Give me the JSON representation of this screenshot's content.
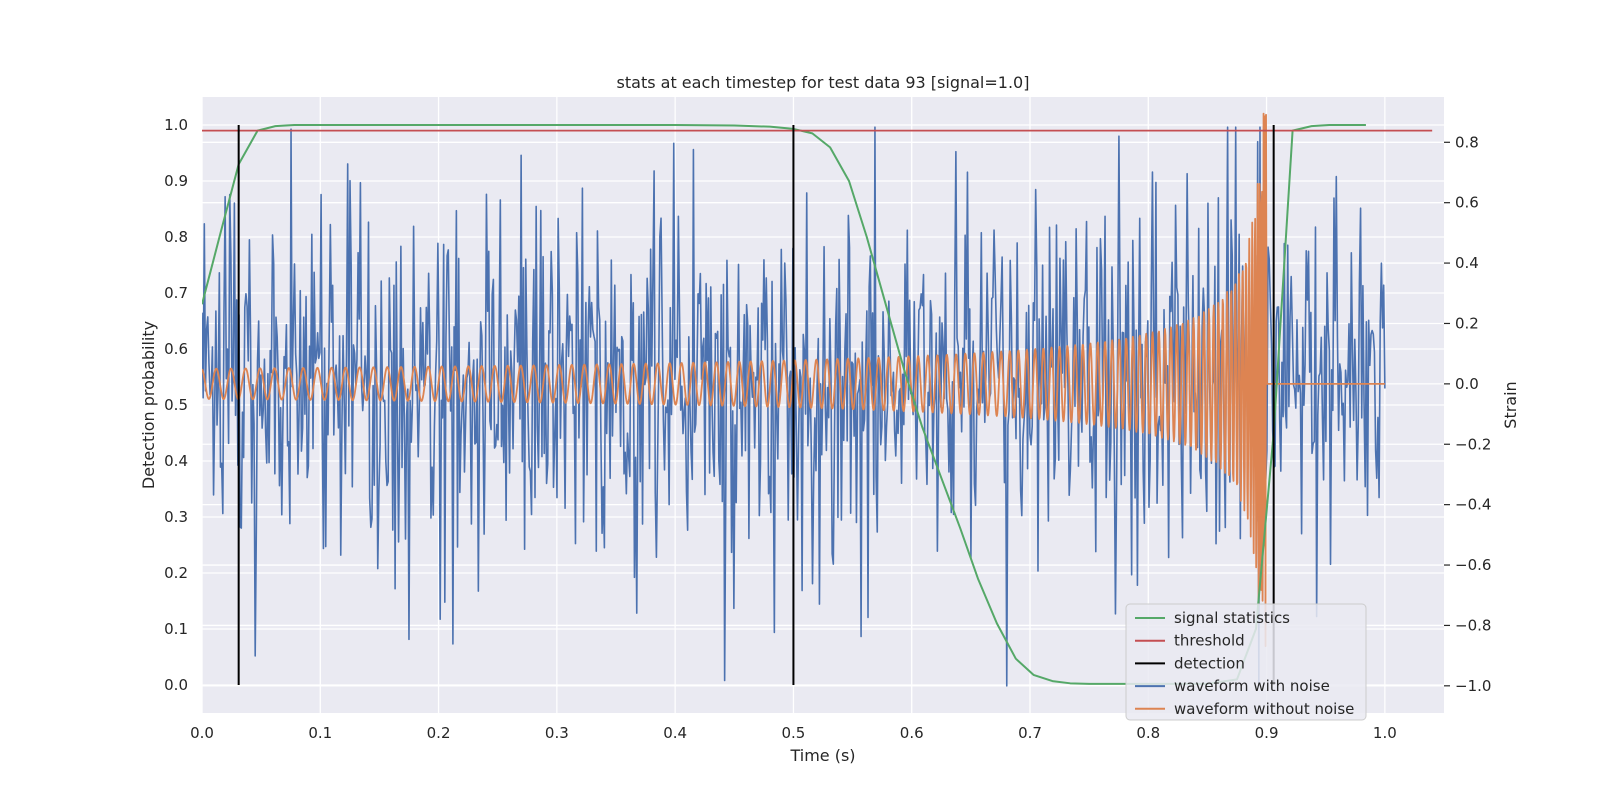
{
  "chart_data": {
    "type": "line",
    "title": "stats at each timestep for test data 93 [signal=1.0]",
    "xlabel": "Time (s)",
    "ylabel": "Detection probability",
    "y2label": "Strain",
    "xlim": [
      0.0,
      1.05
    ],
    "ylim": [
      -0.05,
      1.05
    ],
    "y2lim": [
      -1.09,
      0.95
    ],
    "xticks": [
      "0.0",
      "0.1",
      "0.2",
      "0.3",
      "0.4",
      "0.5",
      "0.6",
      "0.7",
      "0.8",
      "0.9",
      "1.0"
    ],
    "yticks": [
      "0.0",
      "0.1",
      "0.2",
      "0.3",
      "0.4",
      "0.5",
      "0.6",
      "0.7",
      "0.8",
      "0.9",
      "1.0"
    ],
    "y2ticks": [
      "−1.0",
      "−0.8",
      "−0.6",
      "−0.4",
      "−0.2",
      "0.0",
      "0.2",
      "0.4",
      "0.6",
      "0.8"
    ],
    "grid": true,
    "legend_position": "bottom-right",
    "colors": {
      "background": "#eaeaf2",
      "signal_statistics": "#55a868",
      "threshold": "#c44e52",
      "detection": "#000000",
      "waveform_with_noise": "#4c72b0",
      "waveform_without_noise": "#dd8452"
    },
    "series": [
      {
        "name": "signal statistics",
        "axis": "left",
        "x": [
          0.0,
          0.016,
          0.031,
          0.047,
          0.062,
          0.078,
          0.094,
          0.2,
          0.3,
          0.4,
          0.45,
          0.48,
          0.5,
          0.516,
          0.531,
          0.547,
          0.562,
          0.578,
          0.594,
          0.609,
          0.625,
          0.641,
          0.656,
          0.672,
          0.688,
          0.703,
          0.719,
          0.734,
          0.75,
          0.8,
          0.85,
          0.875,
          0.891,
          0.906,
          0.922,
          0.938,
          0.953,
          0.969,
          0.984
        ],
        "y": [
          0.68,
          0.81,
          0.93,
          0.99,
          0.998,
          1.0,
          1.0,
          1.0,
          1.0,
          1.0,
          0.999,
          0.997,
          0.993,
          0.985,
          0.96,
          0.9,
          0.8,
          0.68,
          0.56,
          0.46,
          0.37,
          0.28,
          0.19,
          0.11,
          0.047,
          0.018,
          0.007,
          0.003,
          0.002,
          0.002,
          0.002,
          0.01,
          0.1,
          0.45,
          0.99,
          0.998,
          1.0,
          1.0,
          1.0
        ]
      },
      {
        "name": "threshold",
        "axis": "left",
        "x": [
          0.0,
          1.04
        ],
        "y": [
          0.99,
          0.99
        ]
      },
      {
        "name": "detection",
        "axis": "left",
        "x": [
          0.031,
          0.5,
          0.906
        ],
        "y_range": [
          0.0,
          1.0
        ]
      },
      {
        "name": "waveform with noise",
        "axis": "right",
        "x_range": [
          0.0,
          1.0
        ],
        "std": 0.3,
        "samples": 1024
      },
      {
        "name": "waveform without noise",
        "axis": "right",
        "x_range": [
          0.0,
          1.0
        ],
        "merger_time": 0.9,
        "peak_amplitude": 0.9,
        "min_amplitude": 0.05
      }
    ]
  }
}
